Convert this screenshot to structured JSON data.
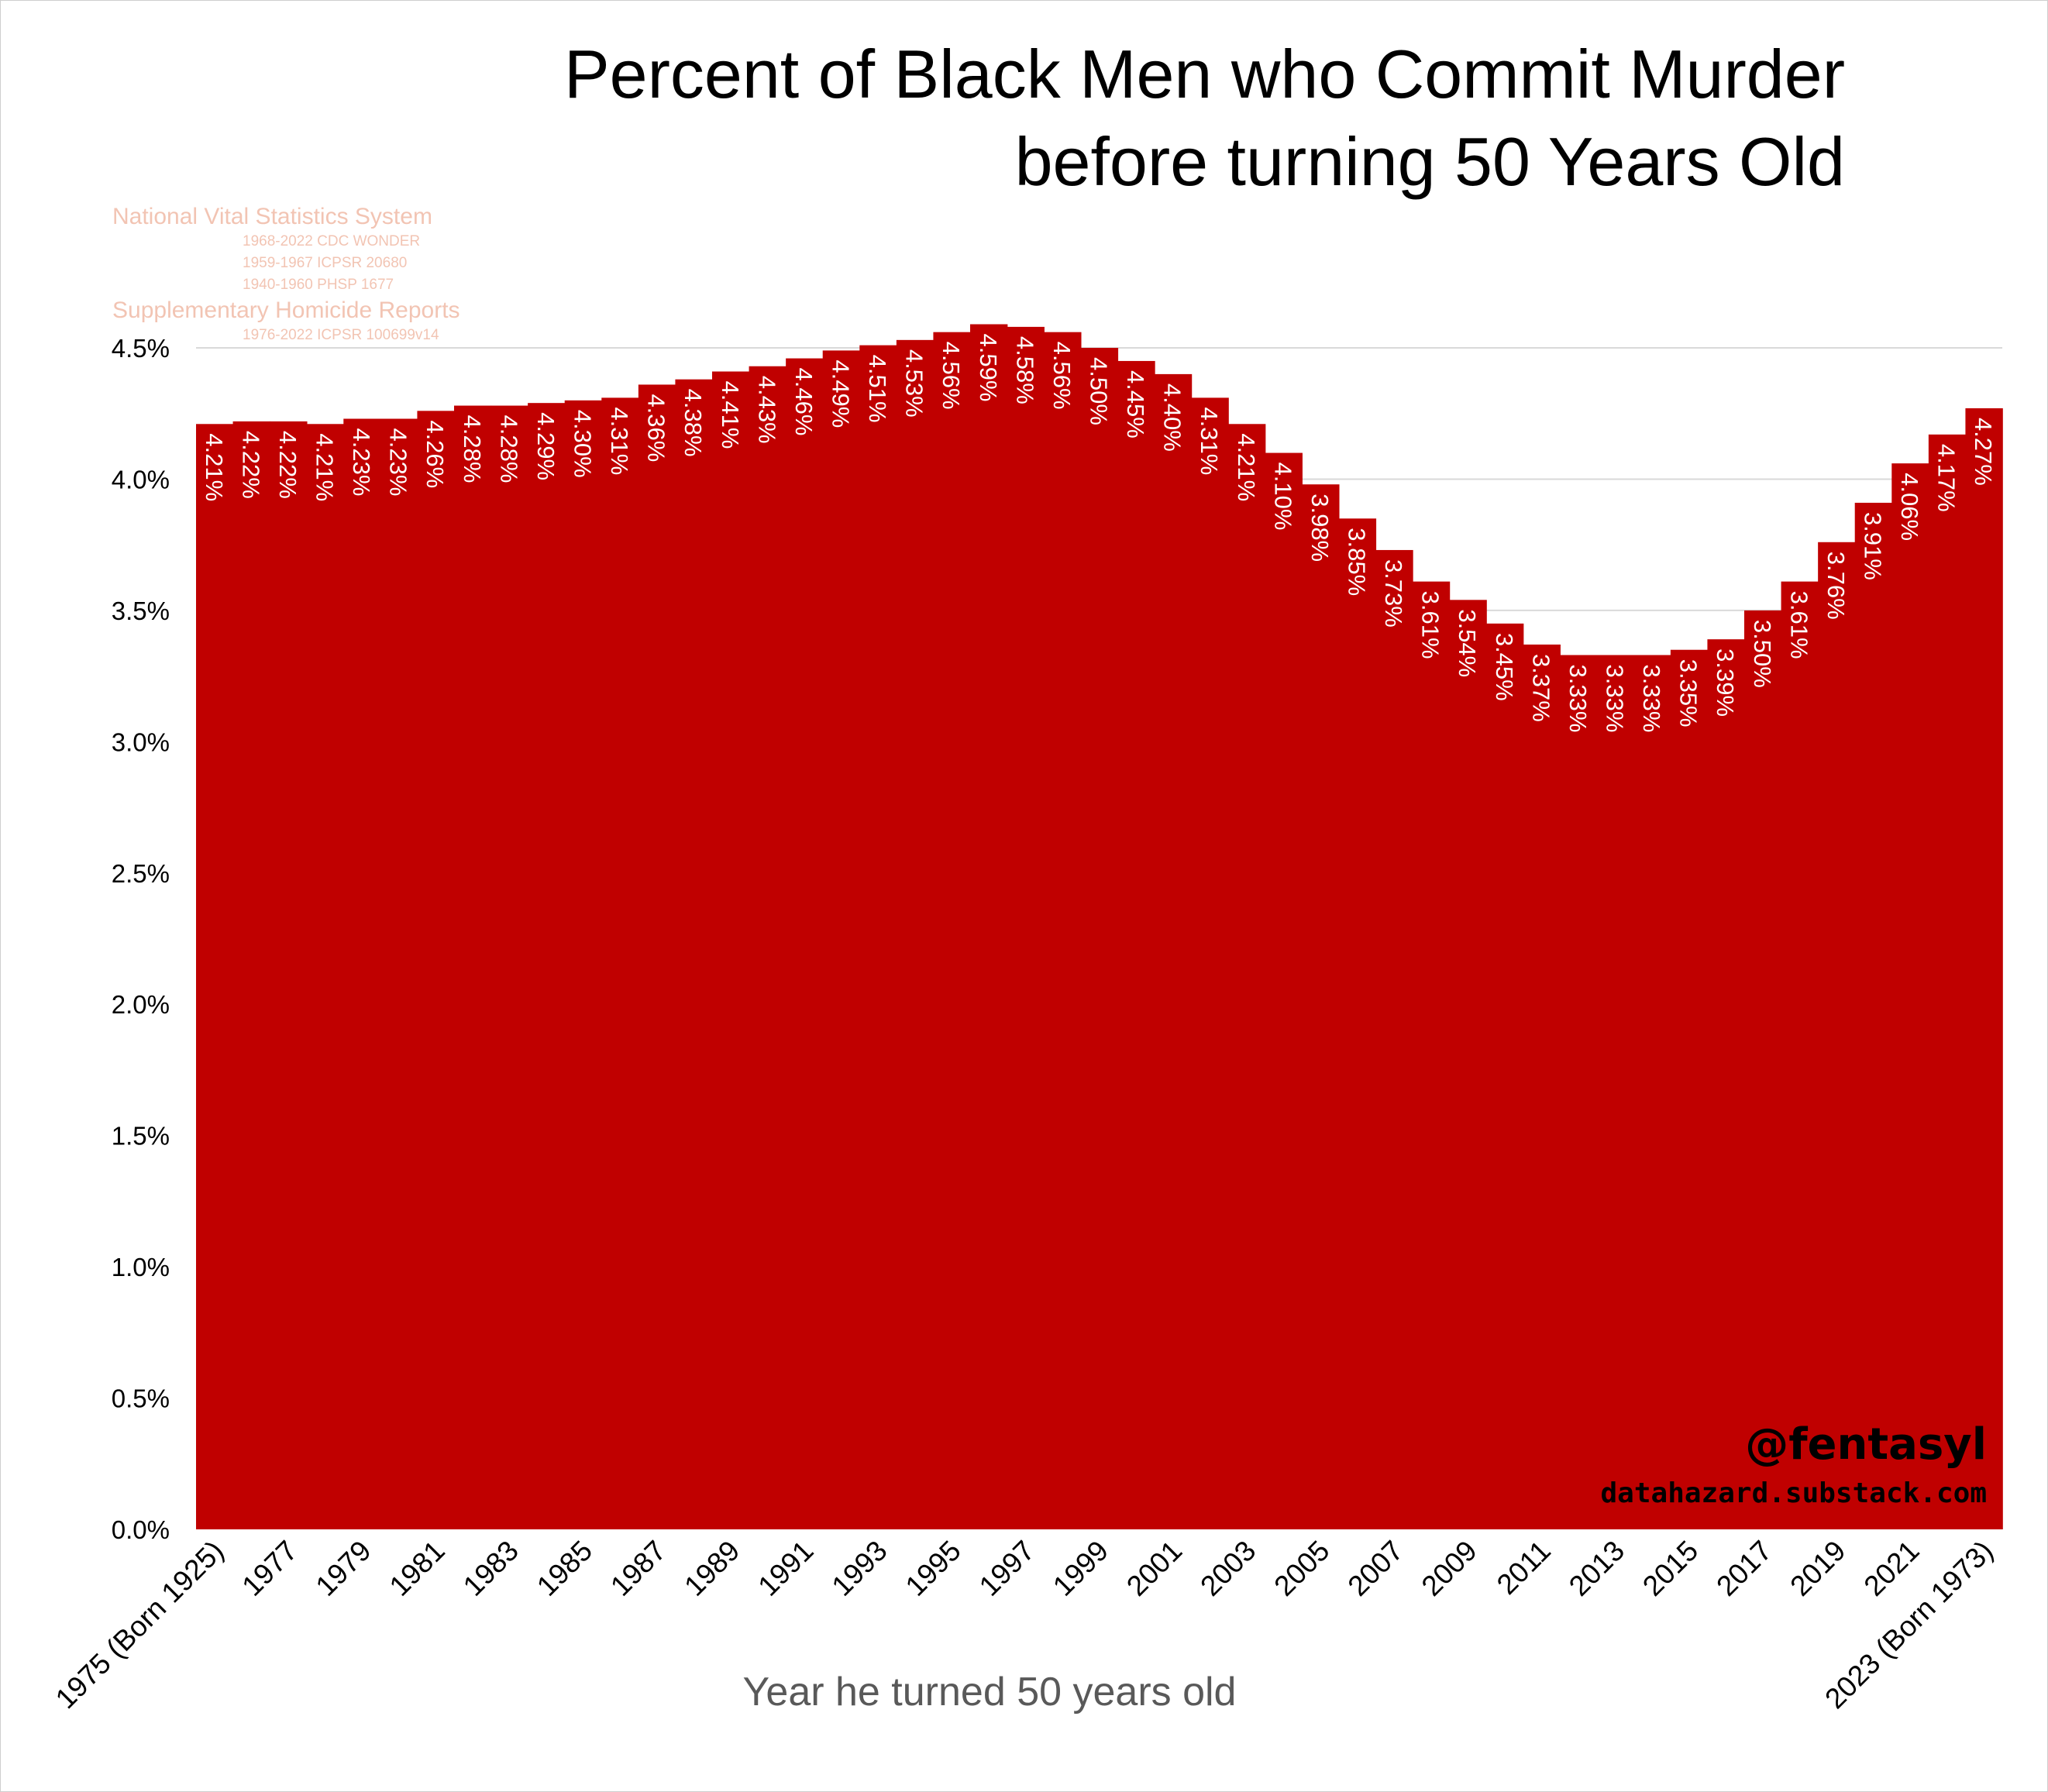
{
  "chart_data": {
    "type": "area",
    "title": "Percent of Black Men who Commit Murder before turning 50 Years Old",
    "title_lines": [
      "Percent of Black Men who Commit Murder",
      "before turning 50 Years Old"
    ],
    "xlabel": "Year he turned 50 years old",
    "ylabel": "",
    "ylim": [
      0,
      4.5
    ],
    "yticks": [
      "0.0%",
      "0.5%",
      "1.0%",
      "1.5%",
      "2.0%",
      "2.5%",
      "3.0%",
      "3.5%",
      "4.0%",
      "4.5%"
    ],
    "ytick_values": [
      0,
      0.5,
      1.0,
      1.5,
      2.0,
      2.5,
      3.0,
      3.5,
      4.0,
      4.5
    ],
    "grid": true,
    "color": "#c00000",
    "x": [
      1975,
      1976,
      1977,
      1978,
      1979,
      1980,
      1981,
      1982,
      1983,
      1984,
      1985,
      1986,
      1987,
      1988,
      1989,
      1990,
      1991,
      1992,
      1993,
      1994,
      1995,
      1996,
      1997,
      1998,
      1999,
      2000,
      2001,
      2002,
      2003,
      2004,
      2005,
      2006,
      2007,
      2008,
      2009,
      2010,
      2011,
      2012,
      2013,
      2014,
      2015,
      2016,
      2017,
      2018,
      2019,
      2020,
      2021,
      2022,
      2023
    ],
    "values": [
      4.21,
      4.22,
      4.22,
      4.21,
      4.23,
      4.23,
      4.26,
      4.28,
      4.28,
      4.29,
      4.3,
      4.31,
      4.36,
      4.38,
      4.41,
      4.43,
      4.46,
      4.49,
      4.51,
      4.53,
      4.56,
      4.59,
      4.58,
      4.56,
      4.5,
      4.45,
      4.4,
      4.31,
      4.21,
      4.1,
      3.98,
      3.85,
      3.73,
      3.61,
      3.54,
      3.45,
      3.37,
      3.33,
      3.33,
      3.33,
      3.35,
      3.39,
      3.5,
      3.61,
      3.76,
      3.91,
      4.06,
      4.17,
      4.27
    ],
    "data_labels": [
      "4.21%",
      "4.22%",
      "4.22%",
      "4.21%",
      "4.23%",
      "4.23%",
      "4.26%",
      "4.28%",
      "4.28%",
      "4.29%",
      "4.30%",
      "4.31%",
      "4.36%",
      "4.38%",
      "4.41%",
      "4.43%",
      "4.46%",
      "4.49%",
      "4.51%",
      "4.53%",
      "4.56%",
      "4.59%",
      "4.58%",
      "4.56%",
      "4.50%",
      "4.45%",
      "4.40%",
      "4.31%",
      "4.21%",
      "4.10%",
      "3.98%",
      "3.85%",
      "3.73%",
      "3.61%",
      "3.54%",
      "3.45%",
      "3.37%",
      "3.33%",
      "3.33%",
      "3.33%",
      "3.35%",
      "3.39%",
      "3.50%",
      "3.61%",
      "3.76%",
      "3.91%",
      "4.06%",
      "4.17%",
      "4.27%"
    ],
    "xtick_labels": [
      "1975 (Born 1925)",
      "1977",
      "1979",
      "1981",
      "1983",
      "1985",
      "1987",
      "1989",
      "1991",
      "1993",
      "1995",
      "1997",
      "1999",
      "2001",
      "2003",
      "2005",
      "2007",
      "2009",
      "2011",
      "2013",
      "2015",
      "2017",
      "2019",
      "2021",
      "2023 (Born 1973)"
    ],
    "xtick_years": [
      1975,
      1977,
      1979,
      1981,
      1983,
      1985,
      1987,
      1989,
      1991,
      1993,
      1995,
      1997,
      1999,
      2001,
      2003,
      2005,
      2007,
      2009,
      2011,
      2013,
      2015,
      2017,
      2019,
      2021,
      2023
    ]
  },
  "sources": {
    "nvss": "National Vital Statistics System",
    "nvss_items": [
      "1968-2022 CDC WONDER",
      "1959-1967 ICPSR 20680",
      "1940-1960 PHSP 1677"
    ],
    "shr": "Supplementary Homicide Reports",
    "shr_items": [
      "1976-2022 ICPSR 100699v14"
    ]
  },
  "watermark": {
    "handle": "@fentasyl",
    "site": "datahazard.substack.com"
  }
}
